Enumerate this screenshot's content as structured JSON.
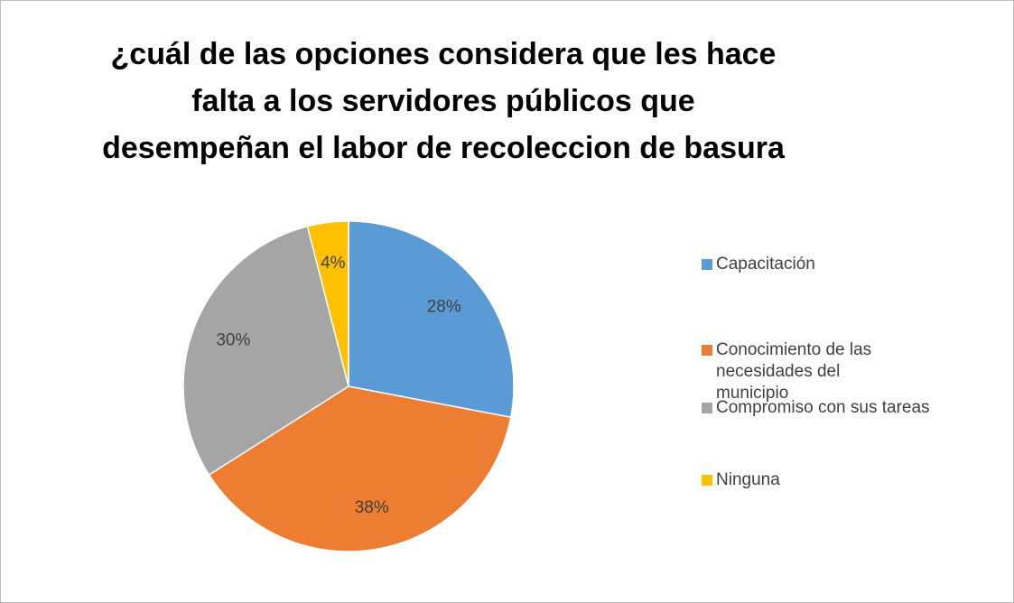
{
  "chart_data": {
    "type": "pie",
    "title": "¿cuál de las opciones considera que les hace falta a los servidores públicos que desempeñan el labor de recoleccion de basura",
    "categories": [
      "Capacitación",
      "Conocimiento de las necesidades del municipio",
      "Compromiso con sus tareas",
      "Ninguna"
    ],
    "values": [
      28,
      38,
      30,
      4
    ],
    "value_labels": [
      "28%",
      "38%",
      "30%",
      "4%"
    ],
    "colors": [
      "#5b9bd5",
      "#ed7d31",
      "#a5a5a5",
      "#ffc000"
    ],
    "legend": "right"
  }
}
